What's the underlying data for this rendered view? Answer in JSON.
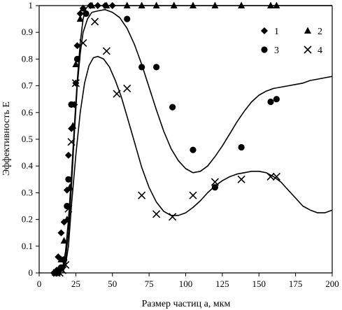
{
  "chart_data": {
    "type": "scatter",
    "xlabel": "Размер частиц a, мкм",
    "ylabel": "Эффективность E",
    "xlim": [
      0,
      200
    ],
    "ylim": [
      0,
      1
    ],
    "xticks": [
      0,
      25,
      50,
      75,
      100,
      125,
      150,
      175,
      200
    ],
    "yticks": [
      0,
      0.1,
      0.2,
      0.3,
      0.4,
      0.5,
      0.6,
      0.7,
      0.8,
      0.9,
      1
    ],
    "grid": false,
    "legend_position": "top-right",
    "series": [
      {
        "name": "1",
        "marker": "diamond",
        "points": [
          [
            10,
            0
          ],
          [
            12,
            0.01
          ],
          [
            13,
            0.06
          ],
          [
            15,
            0.15
          ],
          [
            17,
            0.19
          ],
          [
            19,
            0.31
          ],
          [
            20,
            0.44
          ],
          [
            22,
            0.54
          ],
          [
            24,
            0.63
          ],
          [
            25,
            0.71
          ],
          [
            26,
            0.85
          ],
          [
            28,
            0.97
          ],
          [
            30,
            0.99
          ],
          [
            35,
            1
          ],
          [
            40,
            1
          ],
          [
            45,
            1
          ],
          [
            50,
            1
          ]
        ]
      },
      {
        "name": "2",
        "marker": "triangle",
        "points": [
          [
            11,
            0
          ],
          [
            13,
            0.01
          ],
          [
            15,
            0.05
          ],
          [
            17,
            0.12
          ],
          [
            19,
            0.2
          ],
          [
            21,
            0.32
          ],
          [
            23,
            0.55
          ],
          [
            25,
            0.78
          ],
          [
            28,
            0.95
          ],
          [
            30,
            0.99
          ],
          [
            36,
            1
          ],
          [
            46,
            1
          ],
          [
            60,
            1
          ],
          [
            70,
            1
          ],
          [
            80,
            1
          ],
          [
            92,
            1
          ],
          [
            105,
            1
          ],
          [
            120,
            1
          ],
          [
            138,
            1
          ],
          [
            158,
            1
          ],
          [
            162,
            1
          ]
        ]
      },
      {
        "name": "3",
        "marker": "circle",
        "points": [
          [
            11,
            0
          ],
          [
            13,
            0
          ],
          [
            15,
            0.02
          ],
          [
            17,
            0.05
          ],
          [
            19,
            0.25
          ],
          [
            20,
            0.35
          ],
          [
            22,
            0.63
          ],
          [
            26,
            0.8
          ],
          [
            32,
            0.97
          ],
          [
            60,
            0.95
          ],
          [
            70,
            0.77
          ],
          [
            80,
            0.77
          ],
          [
            91,
            0.62
          ],
          [
            105,
            0.46
          ],
          [
            120,
            0.32
          ],
          [
            138,
            0.47
          ],
          [
            158,
            0.64
          ],
          [
            162,
            0.65
          ]
        ]
      },
      {
        "name": "4",
        "marker": "cross",
        "points": [
          [
            12,
            0
          ],
          [
            14,
            0
          ],
          [
            16,
            0.01
          ],
          [
            18,
            0.03
          ],
          [
            20,
            0.24
          ],
          [
            22,
            0.49
          ],
          [
            25,
            0.71
          ],
          [
            30,
            0.86
          ],
          [
            38,
            0.94
          ],
          [
            46,
            0.83
          ],
          [
            53,
            0.67
          ],
          [
            60,
            0.69
          ],
          [
            70,
            0.29
          ],
          [
            80,
            0.22
          ],
          [
            91,
            0.21
          ],
          [
            105,
            0.29
          ],
          [
            120,
            0.34
          ],
          [
            138,
            0.35
          ],
          [
            158,
            0.36
          ],
          [
            162,
            0.36
          ]
        ]
      }
    ],
    "fit_curves": [
      {
        "points": [
          [
            14,
            0
          ],
          [
            16,
            0.02
          ],
          [
            18,
            0.08
          ],
          [
            20,
            0.2
          ],
          [
            22,
            0.36
          ],
          [
            24,
            0.55
          ],
          [
            26,
            0.72
          ],
          [
            28,
            0.86
          ],
          [
            30,
            0.95
          ],
          [
            32,
            0.99
          ],
          [
            34,
            1
          ],
          [
            200,
            1
          ]
        ]
      },
      {
        "points": [
          [
            14,
            0
          ],
          [
            16,
            0.01
          ],
          [
            18,
            0.05
          ],
          [
            20,
            0.15
          ],
          [
            22,
            0.32
          ],
          [
            24,
            0.52
          ],
          [
            26,
            0.7
          ],
          [
            28,
            0.82
          ],
          [
            30,
            0.9
          ],
          [
            33,
            0.95
          ],
          [
            36,
            0.975
          ],
          [
            40,
            0.98
          ],
          [
            45,
            0.985
          ],
          [
            50,
            0.975
          ],
          [
            55,
            0.955
          ],
          [
            60,
            0.915
          ],
          [
            65,
            0.855
          ],
          [
            70,
            0.78
          ],
          [
            75,
            0.695
          ],
          [
            80,
            0.61
          ],
          [
            85,
            0.53
          ],
          [
            90,
            0.465
          ],
          [
            95,
            0.42
          ],
          [
            100,
            0.39
          ],
          [
            105,
            0.375
          ],
          [
            110,
            0.38
          ],
          [
            115,
            0.4
          ],
          [
            120,
            0.435
          ],
          [
            125,
            0.475
          ],
          [
            130,
            0.52
          ],
          [
            135,
            0.565
          ],
          [
            140,
            0.605
          ],
          [
            145,
            0.64
          ],
          [
            150,
            0.665
          ],
          [
            155,
            0.68
          ],
          [
            160,
            0.69
          ],
          [
            165,
            0.695
          ],
          [
            170,
            0.7
          ],
          [
            175,
            0.705
          ],
          [
            180,
            0.71
          ],
          [
            185,
            0.72
          ],
          [
            190,
            0.725
          ],
          [
            195,
            0.73
          ],
          [
            200,
            0.735
          ]
        ]
      },
      {
        "points": [
          [
            16,
            0
          ],
          [
            18,
            0.03
          ],
          [
            20,
            0.1
          ],
          [
            22,
            0.25
          ],
          [
            25,
            0.44
          ],
          [
            28,
            0.6
          ],
          [
            31,
            0.71
          ],
          [
            34,
            0.775
          ],
          [
            37,
            0.805
          ],
          [
            40,
            0.81
          ],
          [
            44,
            0.8
          ],
          [
            48,
            0.77
          ],
          [
            52,
            0.72
          ],
          [
            56,
            0.66
          ],
          [
            60,
            0.585
          ],
          [
            65,
            0.49
          ],
          [
            70,
            0.395
          ],
          [
            75,
            0.32
          ],
          [
            80,
            0.265
          ],
          [
            85,
            0.23
          ],
          [
            90,
            0.215
          ],
          [
            95,
            0.215
          ],
          [
            100,
            0.225
          ],
          [
            105,
            0.245
          ],
          [
            110,
            0.27
          ],
          [
            115,
            0.3
          ],
          [
            120,
            0.325
          ],
          [
            125,
            0.345
          ],
          [
            130,
            0.36
          ],
          [
            135,
            0.37
          ],
          [
            140,
            0.375
          ],
          [
            145,
            0.38
          ],
          [
            150,
            0.38
          ],
          [
            155,
            0.375
          ],
          [
            160,
            0.36
          ],
          [
            165,
            0.34
          ],
          [
            170,
            0.31
          ],
          [
            175,
            0.28
          ],
          [
            180,
            0.25
          ],
          [
            185,
            0.235
          ],
          [
            190,
            0.225
          ],
          [
            195,
            0.225
          ],
          [
            200,
            0.235
          ]
        ]
      }
    ]
  }
}
